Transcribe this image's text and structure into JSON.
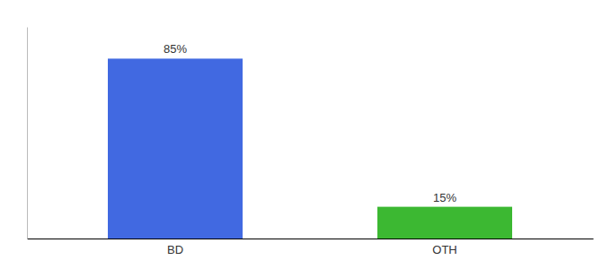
{
  "chart_data": {
    "type": "bar",
    "categories": [
      "BD",
      "OTH"
    ],
    "values": [
      85,
      15
    ],
    "value_labels": [
      "85%",
      "15%"
    ],
    "colors": [
      "#4169e1",
      "#3cb832"
    ],
    "ylim": [
      0,
      100
    ],
    "data_labels": true,
    "tick_labels": "x",
    "grid": false
  }
}
